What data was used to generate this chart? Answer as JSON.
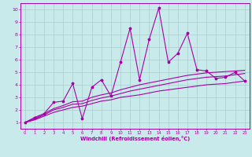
{
  "bg_color": "#c8eaea",
  "line_color": "#aa00aa",
  "xlabel": "Windchill (Refroidissement éolien,°C)",
  "xlabel_color": "#aa00aa",
  "grid_color": "#aacccc",
  "xlim": [
    -0.5,
    23.5
  ],
  "ylim": [
    0.5,
    10.5
  ],
  "xticks": [
    0,
    1,
    2,
    3,
    4,
    5,
    6,
    7,
    8,
    9,
    10,
    11,
    12,
    13,
    14,
    15,
    16,
    17,
    18,
    19,
    20,
    21,
    22,
    23
  ],
  "yticks": [
    1,
    2,
    3,
    4,
    5,
    6,
    7,
    8,
    9,
    10
  ],
  "jagged_x": [
    0,
    1,
    2,
    3,
    4,
    5,
    6,
    7,
    8,
    9,
    10,
    11,
    12,
    13,
    14,
    15,
    16,
    17,
    18,
    19,
    20,
    21,
    22,
    23
  ],
  "jagged_y": [
    1.0,
    1.4,
    1.7,
    2.6,
    2.7,
    4.1,
    1.3,
    3.8,
    4.4,
    3.1,
    5.8,
    8.5,
    4.4,
    7.6,
    10.1,
    5.8,
    6.5,
    8.1,
    5.2,
    5.1,
    4.5,
    4.6,
    5.0,
    4.3
  ],
  "smooth1_x": [
    0,
    1,
    2,
    3,
    4,
    5,
    6,
    7,
    8,
    9,
    10,
    11,
    12,
    13,
    14,
    15,
    16,
    17,
    18,
    19,
    20,
    21,
    22,
    23
  ],
  "smooth1_y": [
    1.0,
    1.2,
    1.5,
    1.8,
    2.0,
    2.2,
    2.3,
    2.5,
    2.7,
    2.8,
    3.0,
    3.1,
    3.2,
    3.35,
    3.5,
    3.6,
    3.7,
    3.8,
    3.9,
    4.0,
    4.05,
    4.1,
    4.2,
    4.3
  ],
  "smooth2_x": [
    0,
    1,
    2,
    3,
    4,
    5,
    6,
    7,
    8,
    9,
    10,
    11,
    12,
    13,
    14,
    15,
    16,
    17,
    18,
    19,
    20,
    21,
    22,
    23
  ],
  "smooth2_y": [
    1.0,
    1.25,
    1.6,
    2.0,
    2.2,
    2.45,
    2.5,
    2.75,
    2.95,
    3.1,
    3.3,
    3.5,
    3.65,
    3.8,
    3.95,
    4.1,
    4.25,
    4.4,
    4.5,
    4.6,
    4.65,
    4.7,
    4.8,
    4.9
  ],
  "smooth3_x": [
    0,
    1,
    2,
    3,
    4,
    5,
    6,
    7,
    8,
    9,
    10,
    11,
    12,
    13,
    14,
    15,
    16,
    17,
    18,
    19,
    20,
    21,
    22,
    23
  ],
  "smooth3_y": [
    1.0,
    1.3,
    1.7,
    2.1,
    2.35,
    2.65,
    2.7,
    3.0,
    3.2,
    3.35,
    3.6,
    3.8,
    4.0,
    4.15,
    4.3,
    4.45,
    4.6,
    4.75,
    4.85,
    4.95,
    5.0,
    5.05,
    5.1,
    5.15
  ]
}
